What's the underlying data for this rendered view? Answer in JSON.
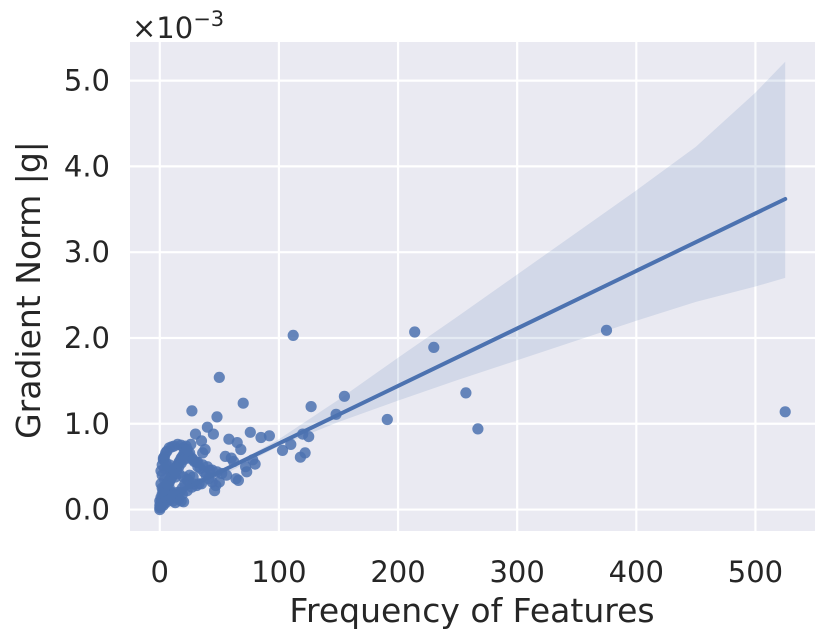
{
  "chart_data": {
    "type": "scatter",
    "title": "",
    "xlabel": "Frequency of Features",
    "ylabel": "Gradient Norm |g|",
    "y_scale_note": "×10",
    "y_scale_exponent": "−3",
    "xlim": [
      -25,
      550
    ],
    "ylim": [
      -0.25,
      5.45
    ],
    "xticks": [
      0,
      100,
      200,
      300,
      400,
      500
    ],
    "xtick_labels": [
      "0",
      "100",
      "200",
      "300",
      "400",
      "500"
    ],
    "yticks": [
      0.0,
      1.0,
      2.0,
      3.0,
      4.0,
      5.0
    ],
    "ytick_labels": [
      "0.0",
      "1.0",
      "2.0",
      "3.0",
      "4.0",
      "5.0"
    ],
    "grid": true,
    "colors": {
      "background": "#EAEAF2",
      "grid": "#FFFFFF",
      "points": "#4C72B0",
      "line": "#4C72B0",
      "band": "#4C72B0"
    },
    "regression_line": {
      "x": [
        0,
        525
      ],
      "y": [
        0.1,
        3.62
      ]
    },
    "confidence_band": {
      "x": [
        0,
        50,
        100,
        150,
        200,
        250,
        300,
        350,
        400,
        450,
        500,
        525
      ],
      "lower": [
        0.0,
        0.38,
        0.74,
        1.02,
        1.27,
        1.51,
        1.74,
        1.97,
        2.2,
        2.42,
        2.6,
        2.7
      ],
      "upper": [
        0.2,
        0.44,
        0.82,
        1.28,
        1.77,
        2.25,
        2.74,
        3.23,
        3.72,
        4.23,
        4.86,
        5.22
      ]
    },
    "series": [
      {
        "x": [
          112,
          214,
          230,
          257,
          267,
          375,
          525,
          50,
          70,
          27,
          48,
          155,
          127,
          148,
          191,
          58,
          65,
          76,
          85,
          92,
          103,
          110,
          118,
          122,
          125,
          120,
          45,
          40,
          35,
          30,
          26,
          22,
          38,
          55,
          62,
          72,
          80,
          42,
          28,
          33,
          50,
          46,
          52,
          60,
          66,
          68,
          73,
          78,
          36,
          31,
          24,
          20,
          18,
          15,
          12,
          10,
          8,
          6,
          5,
          4,
          3,
          2,
          1,
          0,
          0,
          1,
          2,
          3,
          4,
          5,
          6,
          7,
          8,
          9,
          10,
          11,
          12,
          13,
          14,
          15,
          16,
          17,
          18,
          19,
          20,
          21,
          22,
          23,
          25,
          27,
          29,
          32,
          34,
          37,
          39,
          41,
          44,
          47,
          2,
          4,
          6,
          8,
          10,
          12,
          14,
          16,
          18,
          20,
          3,
          5,
          7,
          9,
          11,
          13,
          1,
          2,
          3,
          5,
          7,
          9,
          11,
          13,
          15,
          17,
          19,
          21,
          23,
          25,
          1,
          3,
          5,
          7,
          9,
          0,
          1,
          2,
          0,
          1,
          2,
          3,
          4,
          6,
          8,
          10,
          12,
          14,
          16,
          18,
          20,
          24,
          28,
          32,
          36,
          40,
          44,
          48,
          56,
          64,
          15,
          19,
          23,
          27,
          31,
          35,
          4,
          8,
          12,
          16,
          20,
          24,
          28
        ],
        "y": [
          2.03,
          2.07,
          1.89,
          1.36,
          0.94,
          2.09,
          1.14,
          1.54,
          1.24,
          1.15,
          1.08,
          1.32,
          1.2,
          1.11,
          1.05,
          0.82,
          0.78,
          0.9,
          0.84,
          0.86,
          0.69,
          0.76,
          0.61,
          0.66,
          0.85,
          0.88,
          0.88,
          0.96,
          0.8,
          0.88,
          0.76,
          0.74,
          0.7,
          0.62,
          0.56,
          0.5,
          0.53,
          0.46,
          0.38,
          0.3,
          0.32,
          0.22,
          0.42,
          0.6,
          0.34,
          0.7,
          0.44,
          0.58,
          0.66,
          0.55,
          0.64,
          0.72,
          0.75,
          0.76,
          0.74,
          0.73,
          0.72,
          0.68,
          0.66,
          0.62,
          0.58,
          0.52,
          0.45,
          0.05,
          0.02,
          0.08,
          0.12,
          0.15,
          0.2,
          0.22,
          0.25,
          0.3,
          0.32,
          0.35,
          0.38,
          0.42,
          0.45,
          0.48,
          0.5,
          0.52,
          0.55,
          0.57,
          0.6,
          0.62,
          0.64,
          0.65,
          0.68,
          0.7,
          0.66,
          0.6,
          0.56,
          0.5,
          0.48,
          0.44,
          0.4,
          0.36,
          0.32,
          0.28,
          0.4,
          0.35,
          0.3,
          0.25,
          0.2,
          0.18,
          0.14,
          0.12,
          0.1,
          0.09,
          0.6,
          0.55,
          0.5,
          0.45,
          0.42,
          0.38,
          0.3,
          0.25,
          0.22,
          0.18,
          0.15,
          0.12,
          0.1,
          0.08,
          0.15,
          0.2,
          0.25,
          0.3,
          0.35,
          0.4,
          0.1,
          0.05,
          0.08,
          0.12,
          0.16,
          0.0,
          0.03,
          0.06,
          0.1,
          0.14,
          0.18,
          0.22,
          0.26,
          0.3,
          0.34,
          0.38,
          0.42,
          0.46,
          0.5,
          0.54,
          0.58,
          0.6,
          0.58,
          0.55,
          0.52,
          0.5,
          0.46,
          0.44,
          0.4,
          0.36,
          0.2,
          0.18,
          0.22,
          0.26,
          0.28,
          0.3,
          0.48,
          0.52,
          0.46,
          0.42,
          0.38,
          0.34,
          0.3
        ]
      }
    ]
  }
}
